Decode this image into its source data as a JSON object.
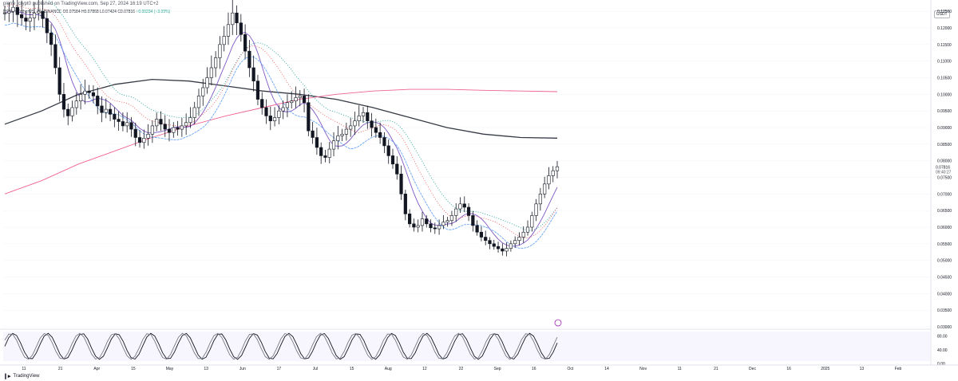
{
  "header": {
    "publisher_line": "pierre_crypt0 published on TradingView.com, Sep 27, 2024 16:19 UTC+2",
    "symbol_line": "ROSE / TetherUS, 1D, BINANCE",
    "ohlc_text": "O0.07584  H0.07868  L0.07424  C0.07816",
    "change_text": "+0.00234 (+3.09%)"
  },
  "currency": "USDT",
  "footer": {
    "brand": "TradingView",
    "logo_icon": "tradingview-logo-icon"
  },
  "price_axis": {
    "ticks": [
      "0.12500",
      "0.12000",
      "0.11500",
      "0.11000",
      "0.10500",
      "0.10000",
      "0.09500",
      "0.09000",
      "0.08500",
      "0.08000",
      "0.07500",
      "0.07000",
      "0.06500",
      "0.06000",
      "0.05500",
      "0.05000",
      "0.04500",
      "0.04000",
      "0.03500",
      "0.03000"
    ],
    "last_price": "0.07816",
    "countdown": "09:40:27"
  },
  "osc_axis": {
    "ticks": [
      "80.00",
      "40.00",
      "0.00"
    ]
  },
  "time_axis": {
    "labels": [
      "11",
      "21",
      "Apr",
      "15",
      "May",
      "13",
      "Jun",
      "17",
      "Jul",
      "15",
      "Aug",
      "12",
      "22",
      "Sep",
      "16",
      "Oct",
      "14",
      "Nov",
      "11",
      "21",
      "Dec",
      "16",
      "2025",
      "13",
      "Feb"
    ]
  },
  "colors": {
    "up": "#ffffff",
    "down": "#131722",
    "wick": "#131722",
    "ma_long": "#363a45",
    "ma_pink": "#f06292",
    "band_blue": "#5b9cf6",
    "ema_purple": "#7e57c2",
    "dots_green": "#26a69a",
    "dots_red": "#ef5350",
    "grid": "#f0f3fa"
  },
  "chart_data": {
    "type": "candlestick",
    "symbol": "ROSE / TetherUS",
    "interval": "1D",
    "exchange": "BINANCE",
    "ylim": [
      0.03,
      0.126
    ],
    "close_trajectory": [
      0.1245,
      0.125,
      0.1262,
      0.124,
      0.123,
      0.122,
      0.123,
      0.1245,
      0.125,
      0.1228,
      0.1185,
      0.115,
      0.108,
      0.1,
      0.0955,
      0.0935,
      0.096,
      0.098,
      0.1,
      0.101,
      0.1005,
      0.0995,
      0.0965,
      0.0945,
      0.0955,
      0.094,
      0.0925,
      0.0918,
      0.0905,
      0.0915,
      0.0895,
      0.087,
      0.0855,
      0.0868,
      0.088,
      0.0905,
      0.0925,
      0.091,
      0.0895,
      0.0885,
      0.09,
      0.0895,
      0.0905,
      0.0915,
      0.093,
      0.096,
      0.0995,
      0.102,
      0.105,
      0.108,
      0.111,
      0.115,
      0.1175,
      0.121,
      0.1245,
      0.1215,
      0.118,
      0.113,
      0.108,
      0.104,
      0.0985,
      0.096,
      0.0935,
      0.092,
      0.093,
      0.095,
      0.096,
      0.0975,
      0.098,
      0.099,
      0.0995,
      0.0975,
      0.089,
      0.087,
      0.084,
      0.0815,
      0.081,
      0.0835,
      0.086,
      0.0875,
      0.088,
      0.0895,
      0.0905,
      0.092,
      0.0935,
      0.0945,
      0.092,
      0.09,
      0.0885,
      0.087,
      0.0845,
      0.0815,
      0.079,
      0.076,
      0.07,
      0.064,
      0.061,
      0.06,
      0.0605,
      0.0625,
      0.061,
      0.0598,
      0.0595,
      0.0605,
      0.0615,
      0.062,
      0.0635,
      0.0655,
      0.067,
      0.066,
      0.0635,
      0.0605,
      0.0585,
      0.057,
      0.056,
      0.055,
      0.0542,
      0.0535,
      0.0528,
      0.0536,
      0.055,
      0.056,
      0.057,
      0.0585,
      0.06,
      0.0635,
      0.067,
      0.07,
      0.073,
      0.0755,
      0.077,
      0.0782
    ],
    "moving_average_long": [
      0.091,
      0.095,
      0.1,
      0.103,
      0.1045,
      0.104,
      0.1025,
      0.101,
      0.1,
      0.0985,
      0.096,
      0.093,
      0.09,
      0.088,
      0.087,
      0.0868
    ],
    "moving_average_pink": [
      0.07,
      0.074,
      0.079,
      0.083,
      0.087,
      0.0905,
      0.0935,
      0.096,
      0.0985,
      0.1,
      0.101,
      0.1015,
      0.1015,
      0.1012,
      0.101,
      0.1008
    ],
    "oscillator": {
      "ylim": [
        0,
        100
      ],
      "ticks": [
        80,
        40,
        0
      ]
    },
    "last_price": 0.07816
  }
}
